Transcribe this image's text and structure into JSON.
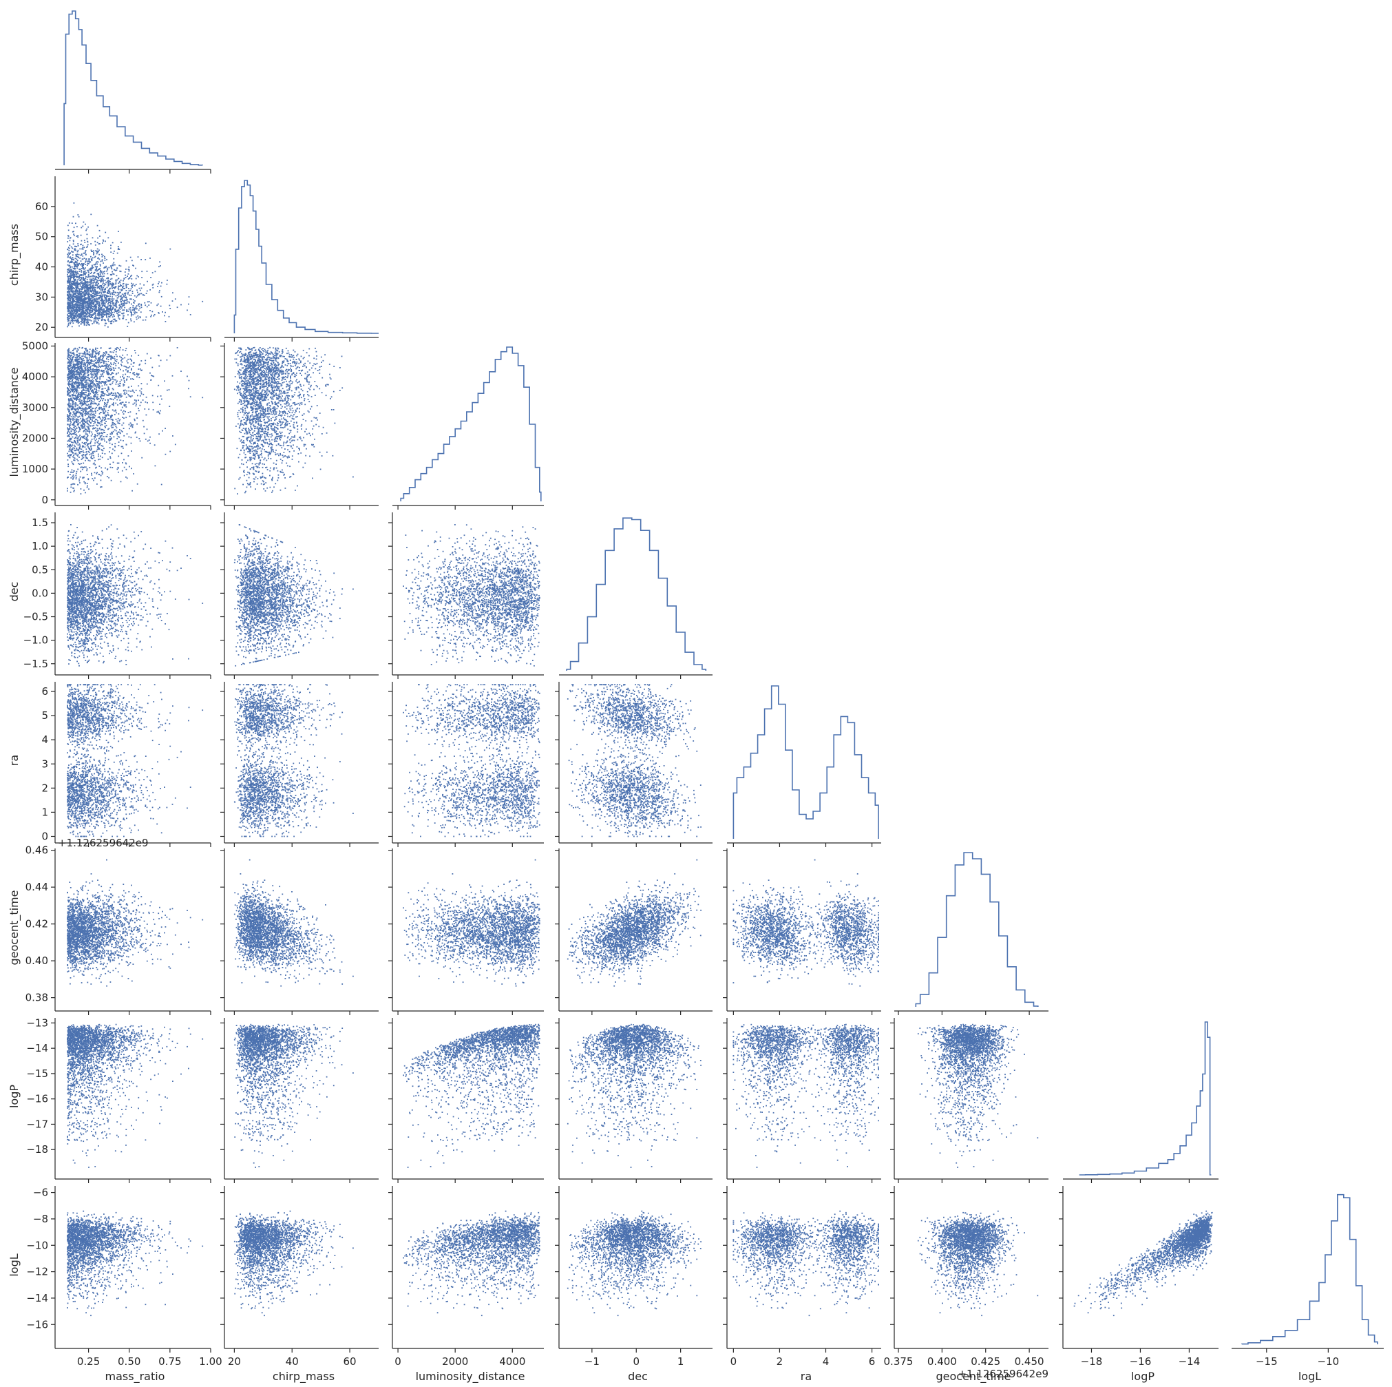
{
  "chart_data": {
    "type": "scatter",
    "layout": "corner pairplot (lower triangle scatter, diagonal step histograms)",
    "color": "#4c72b0",
    "grid": false,
    "variables": [
      "mass_ratio",
      "chirp_mass",
      "luminosity_distance",
      "dec",
      "ra",
      "geocent_time",
      "logP",
      "logL"
    ],
    "axes": {
      "mass_ratio": {
        "label": "mass_ratio",
        "range": [
          0.07,
          1.0
        ],
        "ticks": [
          0.25,
          0.5,
          0.75,
          1.0
        ],
        "tick_labels": [
          "0.25",
          "0.50",
          "0.75",
          "1.00"
        ],
        "offset": ""
      },
      "chirp_mass": {
        "label": "chirp_mass",
        "range": [
          18,
          70
        ],
        "ticks": [
          20,
          30,
          40,
          50,
          60
        ],
        "tick_labels": [
          "20",
          "30",
          "40",
          "50",
          "60"
        ],
        "x_ticks": [
          20,
          40,
          60
        ],
        "x_tick_labels": [
          "20",
          "40",
          "60"
        ],
        "offset": ""
      },
      "luminosity_distance": {
        "label": "luminosity_distance",
        "range": [
          -50,
          5100
        ],
        "ticks": [
          0,
          1000,
          2000,
          3000,
          4000,
          5000
        ],
        "tick_labels": [
          "0",
          "1000",
          "2000",
          "3000",
          "4000",
          "5000"
        ],
        "x_ticks": [
          0,
          2000,
          4000
        ],
        "x_tick_labels": [
          "0",
          "2000",
          "4000"
        ],
        "offset": ""
      },
      "dec": {
        "label": "dec",
        "range": [
          -1.65,
          1.72
        ],
        "ticks": [
          -1.5,
          -1.0,
          -0.5,
          0.0,
          0.5,
          1.0,
          1.5
        ],
        "tick_labels": [
          "−1.5",
          "−1.0",
          "−0.5",
          "0.0",
          "0.5",
          "1.0",
          "1.5"
        ],
        "x_ticks": [
          -1,
          0,
          1
        ],
        "x_tick_labels": [
          "−1",
          "0",
          "1"
        ],
        "offset": ""
      },
      "ra": {
        "label": "ra",
        "range": [
          -0.1,
          6.4
        ],
        "ticks": [
          0,
          1,
          2,
          3,
          4,
          5,
          6
        ],
        "tick_labels": [
          "0",
          "1",
          "2",
          "3",
          "4",
          "5",
          "6"
        ],
        "x_ticks": [
          0,
          2,
          4,
          6
        ],
        "x_tick_labels": [
          "0",
          "2",
          "4",
          "6"
        ],
        "offset": ""
      },
      "geocent_time": {
        "label": "geocent_time",
        "range": [
          0.375,
          0.461
        ],
        "ticks": [
          0.38,
          0.4,
          0.42,
          0.44,
          0.46
        ],
        "tick_labels": [
          "0.38",
          "0.40",
          "0.42",
          "0.44",
          "0.46"
        ],
        "x_ticks": [
          0.375,
          0.4,
          0.425,
          0.45
        ],
        "x_tick_labels": [
          "0.375",
          "0.400",
          "0.425",
          "0.450"
        ],
        "offset": "+1.126259642e9"
      },
      "logP": {
        "label": "logP",
        "range": [
          -19.0,
          -12.8
        ],
        "ticks": [
          -18,
          -17,
          -16,
          -15,
          -14,
          -13
        ],
        "tick_labels": [
          "−18",
          "−17",
          "−16",
          "−15",
          "−14",
          "−13"
        ],
        "x_ticks": [
          -18,
          -16,
          -14
        ],
        "x_tick_labels": [
          "−18",
          "−16",
          "−14"
        ],
        "offset": ""
      },
      "logL": {
        "label": "logL",
        "range": [
          -17.5,
          -5.5
        ],
        "ticks": [
          -16,
          -14,
          -12,
          -10,
          -8,
          -6
        ],
        "tick_labels": [
          "−16",
          "−14",
          "−12",
          "−10",
          "−8",
          "−6"
        ],
        "x_ticks": [
          -15,
          -10
        ],
        "x_tick_labels": [
          "−15",
          "−10"
        ],
        "offset": ""
      }
    },
    "marginals": {
      "mass_ratio": {
        "x": [
          0.1,
          0.12,
          0.14,
          0.16,
          0.18,
          0.2,
          0.22,
          0.25,
          0.28,
          0.32,
          0.36,
          0.4,
          0.45,
          0.5,
          0.55,
          0.6,
          0.65,
          0.7,
          0.75,
          0.8,
          0.85,
          0.9,
          0.95
        ],
        "density": [
          0.4,
          0.85,
          0.98,
          1.0,
          0.95,
          0.88,
          0.78,
          0.66,
          0.55,
          0.45,
          0.38,
          0.32,
          0.25,
          0.19,
          0.15,
          0.11,
          0.08,
          0.06,
          0.04,
          0.025,
          0.012,
          0.005,
          0.001
        ]
      },
      "chirp_mass": {
        "x": [
          20,
          21,
          22,
          23,
          24,
          25,
          26,
          27,
          28,
          29,
          30,
          32,
          34,
          36,
          38,
          40,
          43,
          46,
          50,
          55,
          60,
          65,
          70
        ],
        "density": [
          0.12,
          0.55,
          0.82,
          0.96,
          1.0,
          0.97,
          0.9,
          0.8,
          0.68,
          0.57,
          0.46,
          0.32,
          0.22,
          0.15,
          0.1,
          0.07,
          0.04,
          0.025,
          0.012,
          0.006,
          0.003,
          0.001,
          0.0
        ]
      },
      "luminosity_distance": {
        "x": [
          100,
          300,
          500,
          700,
          900,
          1100,
          1300,
          1500,
          1700,
          1900,
          2100,
          2300,
          2500,
          2700,
          2900,
          3100,
          3300,
          3500,
          3700,
          3900,
          4100,
          4300,
          4500,
          4700,
          4900,
          5000
        ],
        "density": [
          0.02,
          0.05,
          0.09,
          0.14,
          0.18,
          0.22,
          0.27,
          0.31,
          0.37,
          0.42,
          0.47,
          0.52,
          0.58,
          0.64,
          0.7,
          0.77,
          0.84,
          0.92,
          0.97,
          1.0,
          0.96,
          0.88,
          0.74,
          0.5,
          0.22,
          0.06
        ]
      },
      "dec": {
        "x": [
          -1.57,
          -1.4,
          -1.2,
          -1.0,
          -0.8,
          -0.6,
          -0.4,
          -0.2,
          0.0,
          0.2,
          0.4,
          0.6,
          0.8,
          1.0,
          1.2,
          1.4,
          1.57
        ],
        "density": [
          0.01,
          0.06,
          0.18,
          0.35,
          0.56,
          0.78,
          0.92,
          0.99,
          0.98,
          0.91,
          0.78,
          0.6,
          0.42,
          0.25,
          0.12,
          0.04,
          0.01
        ]
      },
      "ra": {
        "x": [
          0.0,
          0.3,
          0.6,
          0.9,
          1.2,
          1.5,
          1.8,
          2.1,
          2.4,
          2.7,
          3.0,
          3.3,
          3.6,
          3.9,
          4.2,
          4.5,
          4.8,
          5.1,
          5.4,
          5.7,
          6.0,
          6.28
        ],
        "density": [
          0.3,
          0.4,
          0.47,
          0.56,
          0.68,
          0.85,
          1.0,
          0.88,
          0.58,
          0.32,
          0.16,
          0.13,
          0.18,
          0.3,
          0.47,
          0.68,
          0.8,
          0.76,
          0.55,
          0.4,
          0.3,
          0.22
        ]
      },
      "geocent_time": {
        "x": [
          0.385,
          0.39,
          0.395,
          0.4,
          0.405,
          0.41,
          0.415,
          0.42,
          0.425,
          0.43,
          0.435,
          0.44,
          0.445,
          0.45,
          0.455
        ],
        "density": [
          0.02,
          0.08,
          0.22,
          0.45,
          0.72,
          0.92,
          1.0,
          0.96,
          0.86,
          0.68,
          0.46,
          0.26,
          0.11,
          0.03,
          0.005
        ]
      },
      "logP": {
        "x": [
          -18.5,
          -18.0,
          -17.5,
          -17.0,
          -16.5,
          -16.0,
          -15.5,
          -15.0,
          -14.75,
          -14.5,
          -14.25,
          -14.0,
          -13.8,
          -13.6,
          -13.5,
          -13.4,
          -13.3,
          -13.2,
          -13.1
        ],
        "density": [
          0.0,
          0.001,
          0.003,
          0.006,
          0.012,
          0.025,
          0.045,
          0.075,
          0.1,
          0.14,
          0.19,
          0.26,
          0.34,
          0.45,
          0.55,
          0.66,
          1.0,
          0.9,
          0.0
        ]
      },
      "logL": {
        "x": [
          -17.0,
          -16.0,
          -15.0,
          -14.0,
          -13.0,
          -12.0,
          -11.0,
          -10.5,
          -10.0,
          -9.5,
          -9.0,
          -8.5,
          -8.0,
          -7.5,
          -7.0,
          -6.5,
          -6.0
        ],
        "density": [
          0.002,
          0.01,
          0.025,
          0.05,
          0.09,
          0.16,
          0.28,
          0.4,
          0.58,
          0.8,
          0.97,
          0.95,
          0.68,
          0.38,
          0.16,
          0.06,
          0.015
        ]
      }
    },
    "pair_trends": [
      {
        "x": "mass_ratio",
        "y": "chirp_mass",
        "description": "dense at low mass_ratio, chirp_mass 20-45, fanning to ~30 at high q"
      },
      {
        "x": "mass_ratio",
        "y": "luminosity_distance",
        "description": "lower bound rises with mass_ratio"
      },
      {
        "x": "chirp_mass",
        "y": "dec",
        "description": "triangle narrowing toward dec ~ -0.5 at high chirp_mass"
      },
      {
        "x": "dec",
        "y": "ra",
        "description": "two anti-correlated lobes: ra~5 at high dec, ra~2 at low dec"
      },
      {
        "x": "dec",
        "y": "geocent_time",
        "description": "positive correlation"
      },
      {
        "x": "luminosity_distance",
        "y": "logP",
        "description": "upper envelope rising, ~ -13 plateau"
      },
      {
        "x": "dec",
        "y": "logP",
        "description": "dome shape, maximum near dec = 0"
      },
      {
        "x": "luminosity_distance",
        "y": "logL",
        "description": "increasing trend"
      },
      {
        "x": "logP",
        "y": "logL",
        "description": "strong positive correlation"
      }
    ]
  }
}
